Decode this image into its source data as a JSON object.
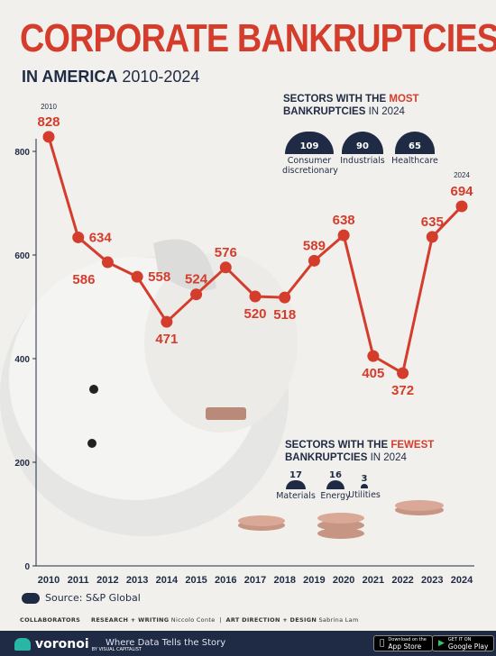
{
  "header": {
    "title": "CORPORATE BANKRUPTCIES",
    "subtitle_bold": "IN AMERICA",
    "subtitle_years": "2010-2024"
  },
  "colors": {
    "accent": "#d43c2c",
    "navy": "#1f2a44",
    "background": "#f1f0ec"
  },
  "most_sectors": {
    "title_pre": "SECTORS WITH THE",
    "title_hl": "MOST",
    "title_line2": "BANKRUPTCIES",
    "title_year": "IN 2024",
    "items": [
      {
        "value": "109",
        "label1": "Consumer",
        "label2": "discretionary"
      },
      {
        "value": "90",
        "label1": "Industrials",
        "label2": ""
      },
      {
        "value": "65",
        "label1": "Healthcare",
        "label2": ""
      }
    ]
  },
  "fewest_sectors": {
    "title_pre": "SECTORS WITH THE",
    "title_hl": "FEWEST",
    "title_line2": "BANKRUPTCIES",
    "title_year": "IN 2024",
    "items": [
      {
        "value": "17",
        "label": "Materials"
      },
      {
        "value": "16",
        "label": "Energy"
      },
      {
        "value": "3",
        "label": "Utilities"
      }
    ]
  },
  "chart_data": {
    "type": "line",
    "x": [
      "2010",
      "2011",
      "2012",
      "2013",
      "2014",
      "2015",
      "2016",
      "2017",
      "2018",
      "2019",
      "2020",
      "2021",
      "2022",
      "2023",
      "2024"
    ],
    "values": [
      828,
      634,
      586,
      558,
      471,
      524,
      576,
      520,
      518,
      589,
      638,
      405,
      372,
      635,
      694
    ],
    "value_labels": [
      "828",
      "634",
      "586",
      "558",
      "471",
      "524",
      "576",
      "520",
      "518",
      "589",
      "638",
      "405",
      "372",
      "635",
      "694"
    ],
    "endpoint_year_labels": [
      "2010",
      "2024"
    ],
    "y_ticks": [
      "0",
      "200",
      "400",
      "600",
      "800"
    ],
    "ylim": [
      0,
      800
    ],
    "color": "#d43c2c"
  },
  "source": {
    "text": "Source: S&P Global"
  },
  "collaborators": {
    "label": "COLLABORATORS",
    "research_label": "RESEARCH + WRITING",
    "research_name": "Niccolo Conte",
    "art_label": "ART DIRECTION + DESIGN",
    "art_name": "Sabrina Lam"
  },
  "footer": {
    "brand": "voronoi",
    "brand_sub": "BY VISUAL CAPITALIST",
    "tagline": "Where Data Tells the Story",
    "appstore_small": "Download on the",
    "appstore": "App Store",
    "googleplay_small": "GET IT ON",
    "googleplay": "Google Play"
  }
}
